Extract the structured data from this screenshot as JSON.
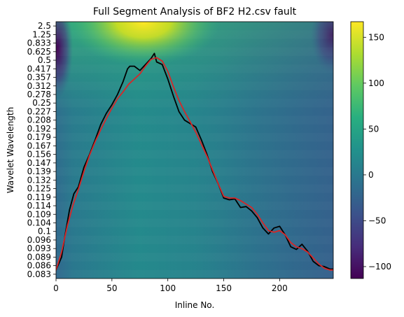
{
  "chart_data": {
    "type": "heatmap",
    "title": "Full Segment Analysis of BF2 H2.csv fault",
    "xlabel": "Inline No.",
    "ylabel": "Wavelet Wavelength",
    "xlim": [
      0,
      248
    ],
    "x_ticks": [
      0,
      50,
      100,
      150,
      200
    ],
    "y_tick_labels": [
      "2.5",
      "1.25",
      "0.833",
      "0.625",
      "0.5",
      "0.417",
      "0.357",
      "0.312",
      "0.278",
      "0.25",
      "0.227",
      "0.208",
      "0.192",
      "0.179",
      "0.167",
      "0.156",
      "0.147",
      "0.139",
      "0.132",
      "0.125",
      "0.119",
      "0.114",
      "0.109",
      "0.104",
      "0.1",
      "0.096",
      "0.093",
      "0.089",
      "0.086",
      "0.083"
    ],
    "colorbar": {
      "colormap": "viridis",
      "range": [
        -113,
        167
      ],
      "ticks": [
        "150",
        "100",
        "50",
        "0",
        "−50",
        "−100"
      ],
      "tick_values": [
        150,
        100,
        50,
        0,
        -50,
        -100
      ]
    },
    "series": [
      {
        "color": "#000000",
        "x": [
          0,
          5,
          8,
          12,
          16,
          20,
          25,
          30,
          35,
          40,
          45,
          50,
          55,
          60,
          64,
          66,
          70,
          75,
          80,
          85,
          88,
          90,
          95,
          100,
          105,
          110,
          115,
          120,
          125,
          130,
          135,
          140,
          145,
          150,
          155,
          160,
          165,
          170,
          175,
          180,
          185,
          190,
          195,
          200,
          205,
          210,
          215,
          220,
          225,
          230,
          235,
          240,
          245,
          248
        ],
        "y": [
          0.5,
          2.0,
          4.5,
          7.5,
          9.4,
          10.2,
          12.5,
          14.0,
          15.7,
          17.5,
          18.8,
          19.8,
          21.0,
          22.5,
          24.0,
          24.3,
          24.3,
          23.8,
          24.5,
          25.2,
          25.8,
          24.8,
          24.5,
          22.8,
          20.8,
          19.0,
          18.0,
          17.6,
          17.2,
          15.7,
          14.0,
          12.0,
          10.6,
          8.9,
          8.7,
          8.8,
          7.8,
          7.9,
          7.4,
          6.6,
          5.4,
          4.7,
          5.4,
          5.6,
          4.6,
          3.2,
          2.9,
          3.5,
          2.7,
          1.5,
          1.0,
          0.9,
          0.6,
          0.6
        ]
      },
      {
        "color": "#d62728",
        "x": [
          0,
          5,
          10,
          15,
          20,
          25,
          30,
          35,
          40,
          45,
          50,
          55,
          60,
          65,
          70,
          75,
          80,
          85,
          90,
          95,
          100,
          105,
          110,
          115,
          120,
          125,
          130,
          135,
          140,
          145,
          150,
          155,
          160,
          165,
          170,
          175,
          180,
          185,
          190,
          195,
          200,
          205,
          210,
          215,
          220,
          225,
          230,
          235,
          240,
          245,
          248
        ],
        "y": [
          0.5,
          2.6,
          5.6,
          8.0,
          9.9,
          12.0,
          13.9,
          15.5,
          16.9,
          18.2,
          19.4,
          20.5,
          21.3,
          22.2,
          22.8,
          23.4,
          24.3,
          25.1,
          25.3,
          24.9,
          23.7,
          21.9,
          20.3,
          19.0,
          17.8,
          16.6,
          15.2,
          13.8,
          12.2,
          10.6,
          9.1,
          8.9,
          8.9,
          8.6,
          8.2,
          7.8,
          7.0,
          6.0,
          5.1,
          4.9,
          5.1,
          4.6,
          3.7,
          3.2,
          3.0,
          2.6,
          1.9,
          1.2,
          0.7,
          0.5,
          0.5
        ]
      }
    ]
  }
}
